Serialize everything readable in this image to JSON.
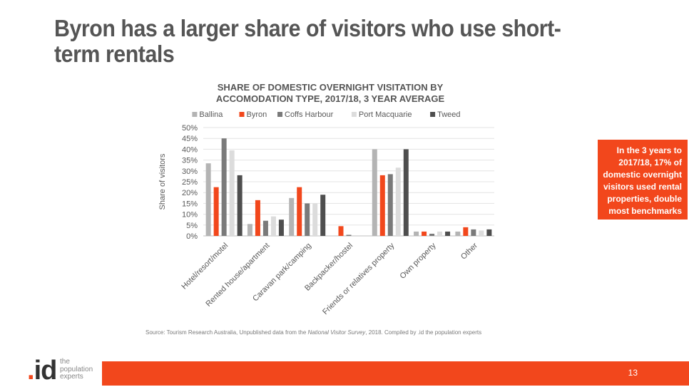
{
  "slide": {
    "title": "Byron has a larger share of visitors who use short-term rentals"
  },
  "callout": {
    "text": "In the 3 years to 2017/18, 17% of domestic overnight visitors used rental properties, double most benchmarks"
  },
  "source": {
    "prefix": "Source: Tourism Research Australia, Unpublished data from the ",
    "italic": "National Visitor Survey",
    "suffix": ", 2018. Compiled by .id the population experts"
  },
  "footer": {
    "page_number": "13",
    "logo_mark": ".id",
    "logo_text": [
      "the",
      "population",
      "experts"
    ]
  },
  "colors": {
    "accent": "#f2471c",
    "title_text": "#555555"
  },
  "chart_data": {
    "type": "bar",
    "title": [
      "SHARE OF DOMESTIC OVERNIGHT VISITATION BY",
      "ACCOMODATION TYPE, 2017/18, 3 YEAR AVERAGE"
    ],
    "ylabel": "Share of visitors",
    "xlabel": "",
    "ylim": [
      0,
      50
    ],
    "yticks": [
      "0%",
      "5%",
      "10%",
      "15%",
      "20%",
      "25%",
      "30%",
      "35%",
      "40%",
      "45%",
      "50%"
    ],
    "grid": true,
    "legend_position": "top",
    "categories": [
      "Hotel/resort/motel",
      "Rented house/apartment",
      "Caravan park/camping",
      "Backpacker/hostel",
      "Friends or relatives property",
      "Own property",
      "Other"
    ],
    "series": [
      {
        "name": "Ballina",
        "color": "#b4b4b4",
        "values": [
          33.5,
          5.5,
          17.5,
          0,
          40,
          2,
          2
        ]
      },
      {
        "name": "Byron",
        "color": "#f2471c",
        "values": [
          22.5,
          16.5,
          22.5,
          4.5,
          28,
          2,
          4
        ]
      },
      {
        "name": "Coffs Harbour",
        "color": "#7a7a7a",
        "values": [
          45,
          7,
          15,
          0.5,
          28.5,
          1,
          3
        ]
      },
      {
        "name": "Port Macquarie",
        "color": "#dcdcdc",
        "values": [
          39.5,
          9,
          15,
          0.3,
          31.5,
          2,
          2.5
        ]
      },
      {
        "name": "Tweed",
        "color": "#4e4e4e",
        "values": [
          28,
          7.5,
          19,
          0,
          40,
          2,
          3
        ]
      }
    ]
  }
}
